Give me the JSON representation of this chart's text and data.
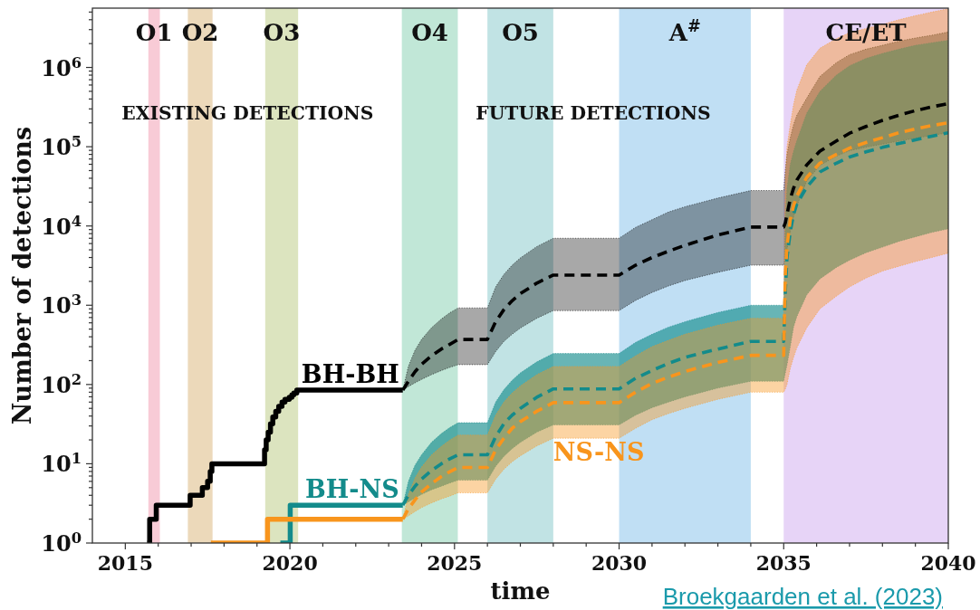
{
  "chart_data": {
    "type": "line",
    "xlabel": "time",
    "ylabel": "Number of detections",
    "log": "y",
    "xlim": [
      2014,
      2040
    ],
    "ylim": [
      1,
      5600000
    ],
    "xticks": [
      2015,
      {
        "value": 2016,
        "label": null
      },
      {
        "value": 2017,
        "label": null
      },
      {
        "value": 2018,
        "label": null
      },
      {
        "value": 2019,
        "label": null
      },
      2020,
      {
        "value": 2021,
        "label": null
      },
      {
        "value": 2022,
        "label": null
      },
      {
        "value": 2023,
        "label": null
      },
      {
        "value": 2024,
        "label": null
      },
      2025,
      {
        "value": 2026,
        "label": null
      },
      {
        "value": 2027,
        "label": null
      },
      {
        "value": 2028,
        "label": null
      },
      {
        "value": 2029,
        "label": null
      },
      2030,
      {
        "value": 2031,
        "label": null
      },
      {
        "value": 2032,
        "label": null
      },
      {
        "value": 2033,
        "label": null
      },
      {
        "value": 2034,
        "label": null
      },
      2035,
      {
        "value": 2036,
        "label": null
      },
      {
        "value": 2037,
        "label": null
      },
      {
        "value": 2038,
        "label": null
      },
      {
        "value": 2039,
        "label": null
      },
      2040
    ],
    "yticks": [
      {
        "value": 1,
        "label": "10$^{0}$"
      },
      {
        "value": 2,
        "label": null
      },
      {
        "value": 3,
        "label": null
      },
      {
        "value": 4,
        "label": null
      },
      {
        "value": 5,
        "label": null
      },
      {
        "value": 6,
        "label": null
      },
      {
        "value": 7,
        "label": null
      },
      {
        "value": 8,
        "label": null
      },
      {
        "value": 9,
        "label": null
      },
      {
        "value": 10,
        "label": "10$^{1}$"
      },
      {
        "value": 20,
        "label": null
      },
      {
        "value": 30,
        "label": null
      },
      {
        "value": 40,
        "label": null
      },
      {
        "value": 50,
        "label": null
      },
      {
        "value": 60,
        "label": null
      },
      {
        "value": 70,
        "label": null
      },
      {
        "value": 80,
        "label": null
      },
      {
        "value": 90,
        "label": null
      },
      {
        "value": 100,
        "label": "10$^{2}$"
      },
      {
        "value": 200,
        "label": null
      },
      {
        "value": 300,
        "label": null
      },
      {
        "value": 400,
        "label": null
      },
      {
        "value": 500,
        "label": null
      },
      {
        "value": 600,
        "label": null
      },
      {
        "value": 700,
        "label": null
      },
      {
        "value": 800,
        "label": null
      },
      {
        "value": 900,
        "label": null
      },
      {
        "value": 1000,
        "label": "10$^{3}$"
      },
      {
        "value": 2000,
        "label": null
      },
      {
        "value": 3000,
        "label": null
      },
      {
        "value": 4000,
        "label": null
      },
      {
        "value": 5000,
        "label": null
      },
      {
        "value": 6000,
        "label": null
      },
      {
        "value": 7000,
        "label": null
      },
      {
        "value": 8000,
        "label": null
      },
      {
        "value": 9000,
        "label": null
      },
      {
        "value": 10000,
        "label": "10$^{4}$"
      },
      {
        "value": 20000,
        "label": null
      },
      {
        "value": 30000,
        "label": null
      },
      {
        "value": 40000,
        "label": null
      },
      {
        "value": 50000,
        "label": null
      },
      {
        "value": 60000,
        "label": null
      },
      {
        "value": 70000,
        "label": null
      },
      {
        "value": 80000,
        "label": null
      },
      {
        "value": 90000,
        "label": null
      },
      {
        "value": 100000,
        "label": "10$^{5}$"
      },
      {
        "value": 200000,
        "label": null
      },
      {
        "value": 300000,
        "label": null
      },
      {
        "value": 400000,
        "label": null
      },
      {
        "value": 500000,
        "label": null
      },
      {
        "value": 600000,
        "label": null
      },
      {
        "value": 700000,
        "label": null
      },
      {
        "value": 800000,
        "label": null
      },
      {
        "value": 900000,
        "label": null
      },
      {
        "value": 1000000,
        "label": "10$^{6}$"
      },
      {
        "value": 2000000,
        "label": null
      },
      {
        "value": 3000000,
        "label": null
      },
      {
        "value": 4000000,
        "label": null
      },
      {
        "value": 5000000,
        "label": null
      }
    ],
    "bands": [
      {
        "axis": "x",
        "from": 2015.7,
        "to": 2016.05,
        "label": "O1",
        "color": "#f8cbd6"
      },
      {
        "axis": "x",
        "from": 2016.9,
        "to": 2017.65,
        "label": "O2",
        "color": "#ecd9ba"
      },
      {
        "axis": "x",
        "from": 2019.25,
        "to": 2020.25,
        "label": "O3",
        "color": "#dce4bf"
      },
      {
        "axis": "x",
        "from": 2023.4,
        "to": 2025.1,
        "label": "O4",
        "color": "#c1e7d7"
      },
      {
        "axis": "x",
        "from": 2026.0,
        "to": 2028.0,
        "label": "O5",
        "color": "#c1e3e4"
      },
      {
        "axis": "x",
        "from": 2030.0,
        "to": 2034.0,
        "label": "A$^{#}$",
        "color": "#c0dff4"
      },
      {
        "axis": "x",
        "from": 2035.0,
        "to": 2040.0,
        "label": "CE/ET",
        "color": "#e7d4f7"
      }
    ],
    "annotations": [
      "EXISTING DETECTIONS",
      "FUTURE DETECTIONS",
      "Broekgaarden et al. (2023)"
    ],
    "x": [
      2023.43,
      2023.6,
      2023.8,
      2024.0,
      2024.3,
      2024.6,
      2024.85,
      2025.11,
      2026.0,
      2026.25,
      2026.5,
      2026.75,
      2027.0,
      2027.5,
      2028.0,
      2030.0,
      2030.5,
      2031.0,
      2031.5,
      2032.0,
      2033.0,
      2034.0,
      2035.0,
      2035.05,
      2035.1,
      2035.2,
      2035.3,
      2035.4,
      2035.7,
      2036.1,
      2036.6,
      2037.0,
      2037.5,
      2038.0,
      2038.5,
      2039.0,
      2039.5,
      2040.0
    ],
    "series": [
      {
        "name": "BH-BH",
        "type": "step",
        "color": "#000000",
        "x": [
          2015.66,
          2015.74,
          2015.94,
          2016.97,
          2017.34,
          2017.5,
          2017.58,
          2017.63,
          2019.23,
          2019.28,
          2019.34,
          2019.41,
          2019.48,
          2019.57,
          2019.66,
          2019.76,
          2019.85,
          2019.98,
          2020.06,
          2020.12,
          2020.21,
          2023.43
        ],
        "values": [
          1,
          2,
          3,
          4,
          5,
          6,
          8,
          10,
          15,
          20,
          25,
          32,
          39,
          46,
          53,
          60,
          65,
          69,
          74,
          78,
          85,
          85
        ]
      },
      {
        "name": "BH-NS",
        "type": "step",
        "color": "#138b8b",
        "x": [
          2019.71,
          2020.01,
          2023.43
        ],
        "values": [
          1,
          3,
          3
        ]
      },
      {
        "type": "step",
        "color": "#f8951d",
        "x": [
          2017.6,
          2019.32,
          2023.43
        ],
        "values": [
          1,
          2,
          2
        ]
      },
      {
        "line_style": "dashed",
        "color": "#000000",
        "values": [
          85,
          110,
          145,
          180,
          230,
          280,
          320,
          370,
          370,
          620,
          880,
          1140,
          1400,
          1900,
          2400,
          2400,
          3200,
          4000,
          4800,
          5700,
          7700,
          9700,
          9700,
          11000,
          14000,
          22000,
          30000,
          38000,
          59000,
          88000,
          118000,
          148000,
          180000,
          215000,
          250000,
          285000,
          318000,
          350000
        ],
        "upper": [
          85,
          170,
          270,
          370,
          520,
          670,
          800,
          925,
          925,
          1700,
          2450,
          3200,
          3950,
          5500,
          7000,
          7000,
          9600,
          12000,
          15000,
          17500,
          22500,
          28000,
          28000,
          50000,
          80000,
          130000,
          190000,
          250000,
          410000,
          770000,
          1150000,
          1450000,
          1700000,
          1900000,
          2150000,
          2350000,
          2550000,
          2800000
        ],
        "lower": [
          85,
          94,
          105,
          116,
          133,
          150,
          164,
          178,
          178,
          260,
          350,
          430,
          515,
          685,
          855,
          855,
          1150,
          1450,
          1750,
          2050,
          2600,
          3200,
          3200,
          3800,
          5000,
          8500,
          13000,
          18000,
          37000,
          58000,
          76000,
          89000,
          99000,
          108000,
          118000,
          128000,
          139000,
          150000
        ]
      },
      {
        "line_style": "dashed",
        "color": "#138b8b",
        "values": [
          3,
          4,
          5.2,
          6.4,
          8.2,
          10,
          11.5,
          13,
          13,
          22,
          32,
          41,
          50,
          69,
          88,
          88,
          120,
          150,
          185,
          220,
          280,
          350,
          350,
          1500,
          4000,
          8500,
          14000,
          19000,
          31000,
          48000,
          62000,
          74000,
          86000,
          98000,
          110000,
          122000,
          136000,
          150000
        ],
        "upper": [
          3,
          6,
          9.6,
          13,
          18.6,
          24,
          28.5,
          33,
          33,
          60,
          86,
          113,
          140,
          193,
          246,
          246,
          340,
          430,
          530,
          620,
          810,
          1000,
          1000,
          12000,
          30000,
          60000,
          88000,
          120000,
          265000,
          500000,
          800000,
          1050000,
          1300000,
          1500000,
          1700000,
          1900000,
          2050000,
          2200000
        ],
        "lower": [
          3,
          3.3,
          3.7,
          4.1,
          4.7,
          5.2,
          5.7,
          6.2,
          6.2,
          9.3,
          12.4,
          15.5,
          18.6,
          25,
          31,
          31,
          41,
          51,
          60,
          70,
          90,
          110,
          110,
          140,
          175,
          300,
          530,
          720,
          1350,
          2150,
          3000,
          3700,
          4600,
          5400,
          6400,
          7300,
          8300,
          9200
        ]
      },
      {
        "name": "NS-NS",
        "line_style": "dashed",
        "color": "#f8951d",
        "values": [
          2,
          2.7,
          3.5,
          4.4,
          5.6,
          6.9,
          7.9,
          9,
          9,
          15,
          21,
          28,
          34,
          46,
          59,
          59,
          80,
          103,
          124,
          146,
          190,
          233,
          233,
          2500,
          5500,
          12000,
          18000,
          24000,
          41000,
          62000,
          80000,
          96000,
          113000,
          130000,
          150000,
          168000,
          185000,
          200000
        ],
        "upper": [
          2,
          4.1,
          6.6,
          9.1,
          12.9,
          16.6,
          19.8,
          23,
          23,
          41,
          60,
          78,
          96,
          133,
          169,
          169,
          230,
          300,
          360,
          430,
          560,
          684,
          684,
          40000,
          100000,
          190000,
          340000,
          520000,
          1080000,
          1750000,
          2300000,
          2750000,
          3100000,
          3500000,
          4000000,
          4500000,
          5000000,
          5500000
        ],
        "lower": [
          2,
          2.2,
          2.5,
          2.8,
          3.2,
          3.6,
          3.9,
          4.3,
          4.3,
          6.4,
          8.5,
          10.6,
          12.6,
          16.8,
          21,
          21,
          28,
          36,
          43,
          50,
          65,
          80,
          80,
          88,
          100,
          160,
          220,
          290,
          520,
          900,
          1300,
          1700,
          2200,
          2700,
          3100,
          3550,
          4000,
          4550
        ]
      }
    ]
  }
}
